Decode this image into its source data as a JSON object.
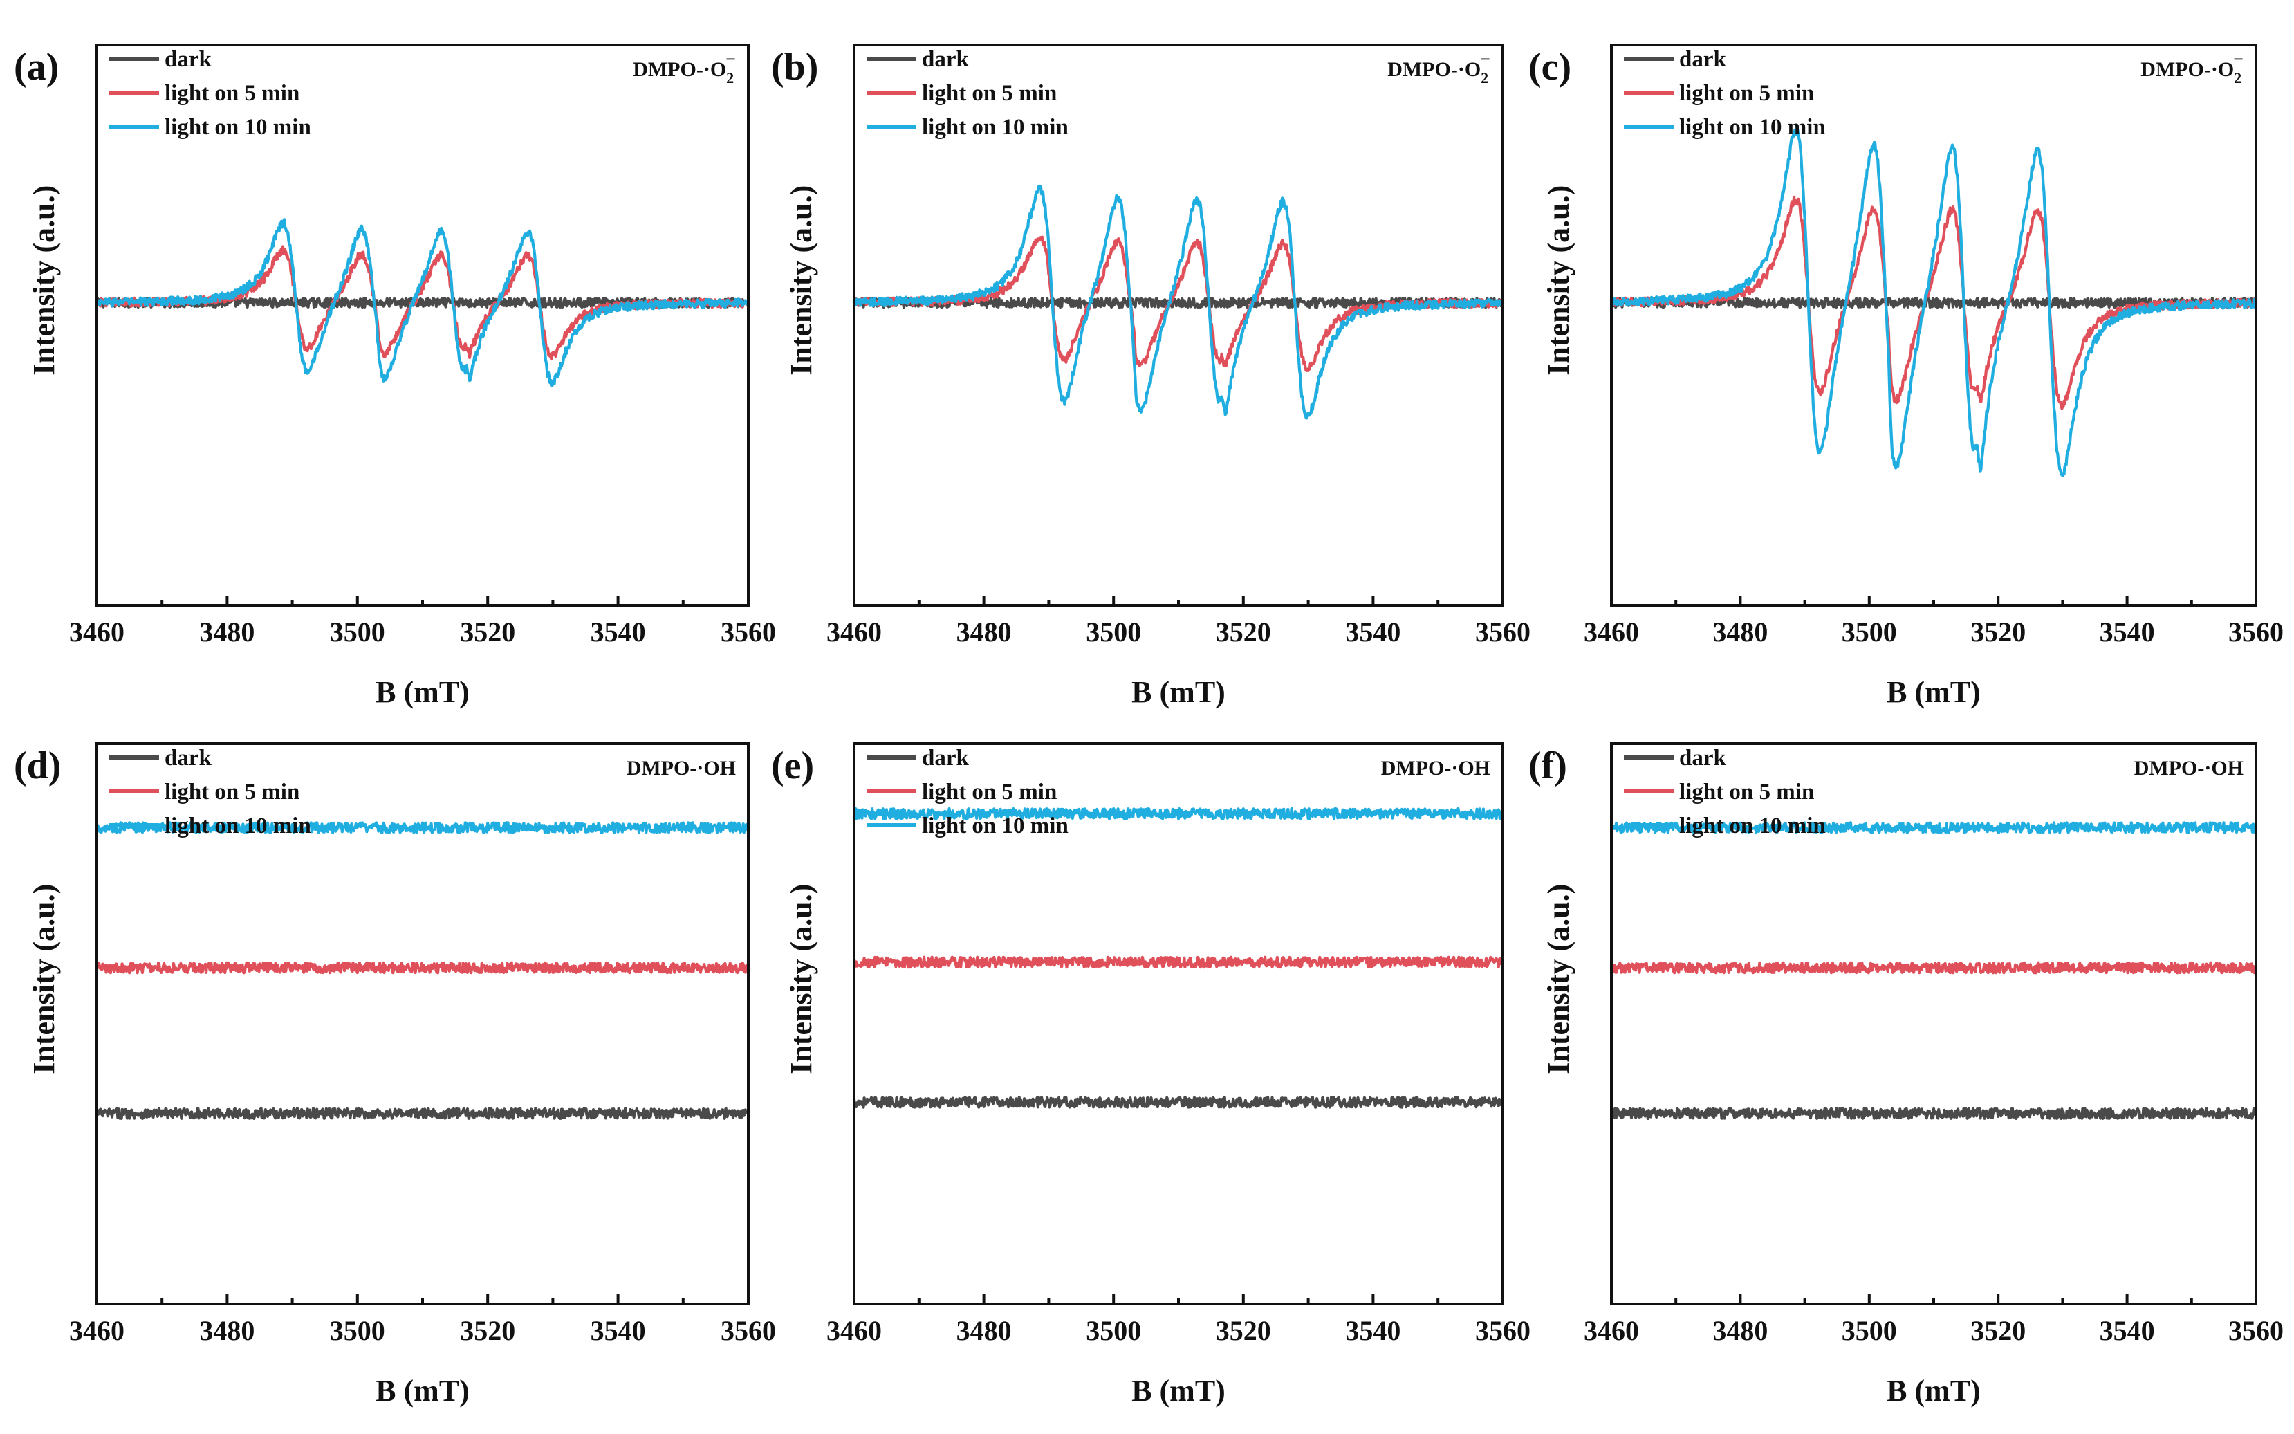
{
  "figure": {
    "colors": {
      "dark": "#4a4a4a",
      "light_5": "#e0505a",
      "light_10": "#20aee0",
      "axis": "#111111"
    }
  },
  "chart_data": [
    {
      "panel": "(a)",
      "type": "line",
      "species_prefix": "DMPO-·O",
      "species_sub": "2",
      "species_sup": "−",
      "xlabel": "B (mT)",
      "ylabel": "Intensity (a.u.)",
      "xlim": [
        3460,
        3560
      ],
      "ylim": [
        -1,
        1
      ],
      "xticks": [
        "3460",
        "3480",
        "3500",
        "3520",
        "3540",
        "3560"
      ],
      "legend": [
        "dark",
        "light on 5 min",
        "light on 10 min"
      ],
      "series": [
        {
          "name": "dark",
          "color": "#4a4a4a",
          "baseline": 0.0,
          "amplitude": 0.0,
          "noise": 0.013
        },
        {
          "name": "light on 5 min",
          "color": "#e0505a",
          "baseline": 0.0,
          "amplitude": 0.2,
          "noise": 0.012
        },
        {
          "name": "light on 10 min",
          "color": "#20aee0",
          "baseline": 0.0,
          "amplitude": 0.3,
          "noise": 0.012
        }
      ],
      "peaks_mT": [
        3490.5,
        3502.5,
        3514.7,
        3528.0
      ],
      "peak_width_mT": 1.9
    },
    {
      "panel": "(b)",
      "type": "line",
      "species_prefix": "DMPO-·O",
      "species_sub": "2",
      "species_sup": "−",
      "xlabel": "B (mT)",
      "ylabel": "Intensity (a.u.)",
      "xlim": [
        3460,
        3560
      ],
      "ylim": [
        -1,
        1
      ],
      "xticks": [
        "3460",
        "3480",
        "3500",
        "3520",
        "3540",
        "3560"
      ],
      "legend": [
        "dark",
        "light on 5 min",
        "light on 10 min"
      ],
      "series": [
        {
          "name": "dark",
          "color": "#4a4a4a",
          "baseline": 0.0,
          "amplitude": 0.0,
          "noise": 0.013
        },
        {
          "name": "light on 5 min",
          "color": "#e0505a",
          "baseline": 0.0,
          "amplitude": 0.25,
          "noise": 0.012
        },
        {
          "name": "light on 10 min",
          "color": "#20aee0",
          "baseline": 0.0,
          "amplitude": 0.43,
          "noise": 0.012
        }
      ],
      "peaks_mT": [
        3490.5,
        3502.5,
        3514.7,
        3528.0
      ],
      "peak_width_mT": 1.9
    },
    {
      "panel": "(c)",
      "type": "line",
      "species_prefix": "DMPO-·O",
      "species_sub": "2",
      "species_sup": "−",
      "xlabel": "B (mT)",
      "ylabel": "Intensity (a.u.)",
      "xlim": [
        3460,
        3560
      ],
      "ylim": [
        -1,
        1
      ],
      "xticks": [
        "3460",
        "3480",
        "3500",
        "3520",
        "3540",
        "3560"
      ],
      "legend": [
        "dark",
        "light on 5 min",
        "light on 10 min"
      ],
      "series": [
        {
          "name": "dark",
          "color": "#4a4a4a",
          "baseline": 0.0,
          "amplitude": 0.0,
          "noise": 0.013
        },
        {
          "name": "light on 5 min",
          "color": "#e0505a",
          "baseline": 0.0,
          "amplitude": 0.39,
          "noise": 0.012
        },
        {
          "name": "light on 10 min",
          "color": "#20aee0",
          "baseline": 0.0,
          "amplitude": 0.65,
          "noise": 0.012
        }
      ],
      "peaks_mT": [
        3490.5,
        3502.5,
        3514.7,
        3528.0
      ],
      "peak_width_mT": 1.9
    },
    {
      "panel": "(d)",
      "type": "line",
      "species_prefix": "DMPO-·OH",
      "species_sub": "",
      "species_sup": "",
      "xlabel": "B (mT)",
      "ylabel": "Intensity (a.u.)",
      "xlim": [
        3460,
        3560
      ],
      "ylim": [
        -1,
        1
      ],
      "xticks": [
        "3460",
        "3480",
        "3500",
        "3520",
        "3540",
        "3560"
      ],
      "legend": [
        "dark",
        "light on 5 min",
        "light on 10 min"
      ],
      "series": [
        {
          "name": "dark",
          "color": "#4a4a4a",
          "baseline": -0.52,
          "amplitude": 0.0,
          "noise": 0.018
        },
        {
          "name": "light on 5 min",
          "color": "#e0505a",
          "baseline": 0.0,
          "amplitude": 0.0,
          "noise": 0.018
        },
        {
          "name": "light on 10 min",
          "color": "#20aee0",
          "baseline": 0.5,
          "amplitude": 0.0,
          "noise": 0.018
        }
      ],
      "peaks_mT": [],
      "peak_width_mT": 0
    },
    {
      "panel": "(e)",
      "type": "line",
      "species_prefix": "DMPO-·OH",
      "species_sub": "",
      "species_sup": "",
      "xlabel": "B (mT)",
      "ylabel": "Intensity (a.u.)",
      "xlim": [
        3460,
        3560
      ],
      "ylim": [
        -1,
        1
      ],
      "xticks": [
        "3460",
        "3480",
        "3500",
        "3520",
        "3540",
        "3560"
      ],
      "legend": [
        "dark",
        "light on 5 min",
        "light on 10 min"
      ],
      "series": [
        {
          "name": "dark",
          "color": "#4a4a4a",
          "baseline": -0.5,
          "amplitude": 0.0,
          "noise": 0.018
        },
        {
          "name": "light on 5 min",
          "color": "#e0505a",
          "baseline": 0.0,
          "amplitude": 0.0,
          "noise": 0.018
        },
        {
          "name": "light on 10 min",
          "color": "#20aee0",
          "baseline": 0.53,
          "amplitude": 0.0,
          "noise": 0.018
        }
      ],
      "peaks_mT": [],
      "peak_width_mT": 0
    },
    {
      "panel": "(f)",
      "type": "line",
      "species_prefix": "DMPO-·OH",
      "species_sub": "",
      "species_sup": "",
      "xlabel": "B (mT)",
      "ylabel": "Intensity (a.u.)",
      "xlim": [
        3460,
        3560
      ],
      "ylim": [
        -1,
        1
      ],
      "xticks": [
        "3460",
        "3480",
        "3500",
        "3520",
        "3540",
        "3560"
      ],
      "legend": [
        "dark",
        "light on 5 min",
        "light on 10 min"
      ],
      "series": [
        {
          "name": "dark",
          "color": "#4a4a4a",
          "baseline": -0.52,
          "amplitude": 0.0,
          "noise": 0.018
        },
        {
          "name": "light on 5 min",
          "color": "#e0505a",
          "baseline": 0.0,
          "amplitude": 0.0,
          "noise": 0.018
        },
        {
          "name": "light on 10 min",
          "color": "#20aee0",
          "baseline": 0.5,
          "amplitude": 0.0,
          "noise": 0.018
        }
      ],
      "peaks_mT": [],
      "peak_width_mT": 0
    }
  ]
}
